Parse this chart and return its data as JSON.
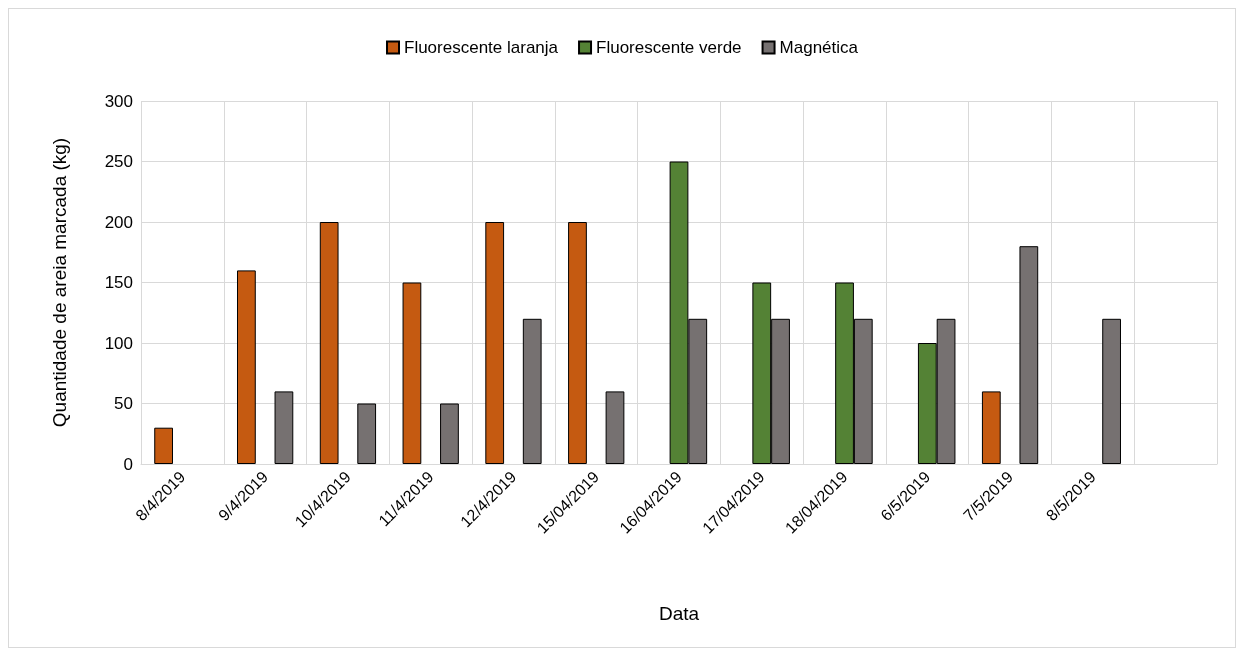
{
  "chart_data": {
    "type": "bar",
    "xlabel": "Data",
    "ylabel": "Quantidade de areia marcada (kg)",
    "categories": [
      "8/4/2019",
      "9/4/2019",
      "10/4/2019",
      "11/4/2019",
      "12/4/2019",
      "15/04/2019",
      "16/04/2019",
      "17/04/2019",
      "18/04/2019",
      "6/5/2019",
      "7/5/2019",
      "8/5/2019",
      null
    ],
    "series": [
      {
        "name": "Fluorescente laranja",
        "color": "#c55a11",
        "values": [
          30,
          160,
          200,
          150,
          200,
          200,
          null,
          null,
          null,
          null,
          60,
          null,
          null
        ]
      },
      {
        "name": "Fluorescente verde",
        "color": "#548235",
        "values": [
          null,
          null,
          null,
          null,
          null,
          null,
          250,
          150,
          150,
          100,
          null,
          null,
          null
        ]
      },
      {
        "name": "Magnética",
        "color": "#767171",
        "values": [
          null,
          60,
          50,
          50,
          120,
          60,
          120,
          120,
          120,
          120,
          180,
          120,
          null
        ]
      }
    ],
    "ylim": [
      0,
      300
    ],
    "yticks": [
      0,
      50,
      100,
      150,
      200,
      250,
      300
    ],
    "grid": true,
    "legend": "top"
  }
}
